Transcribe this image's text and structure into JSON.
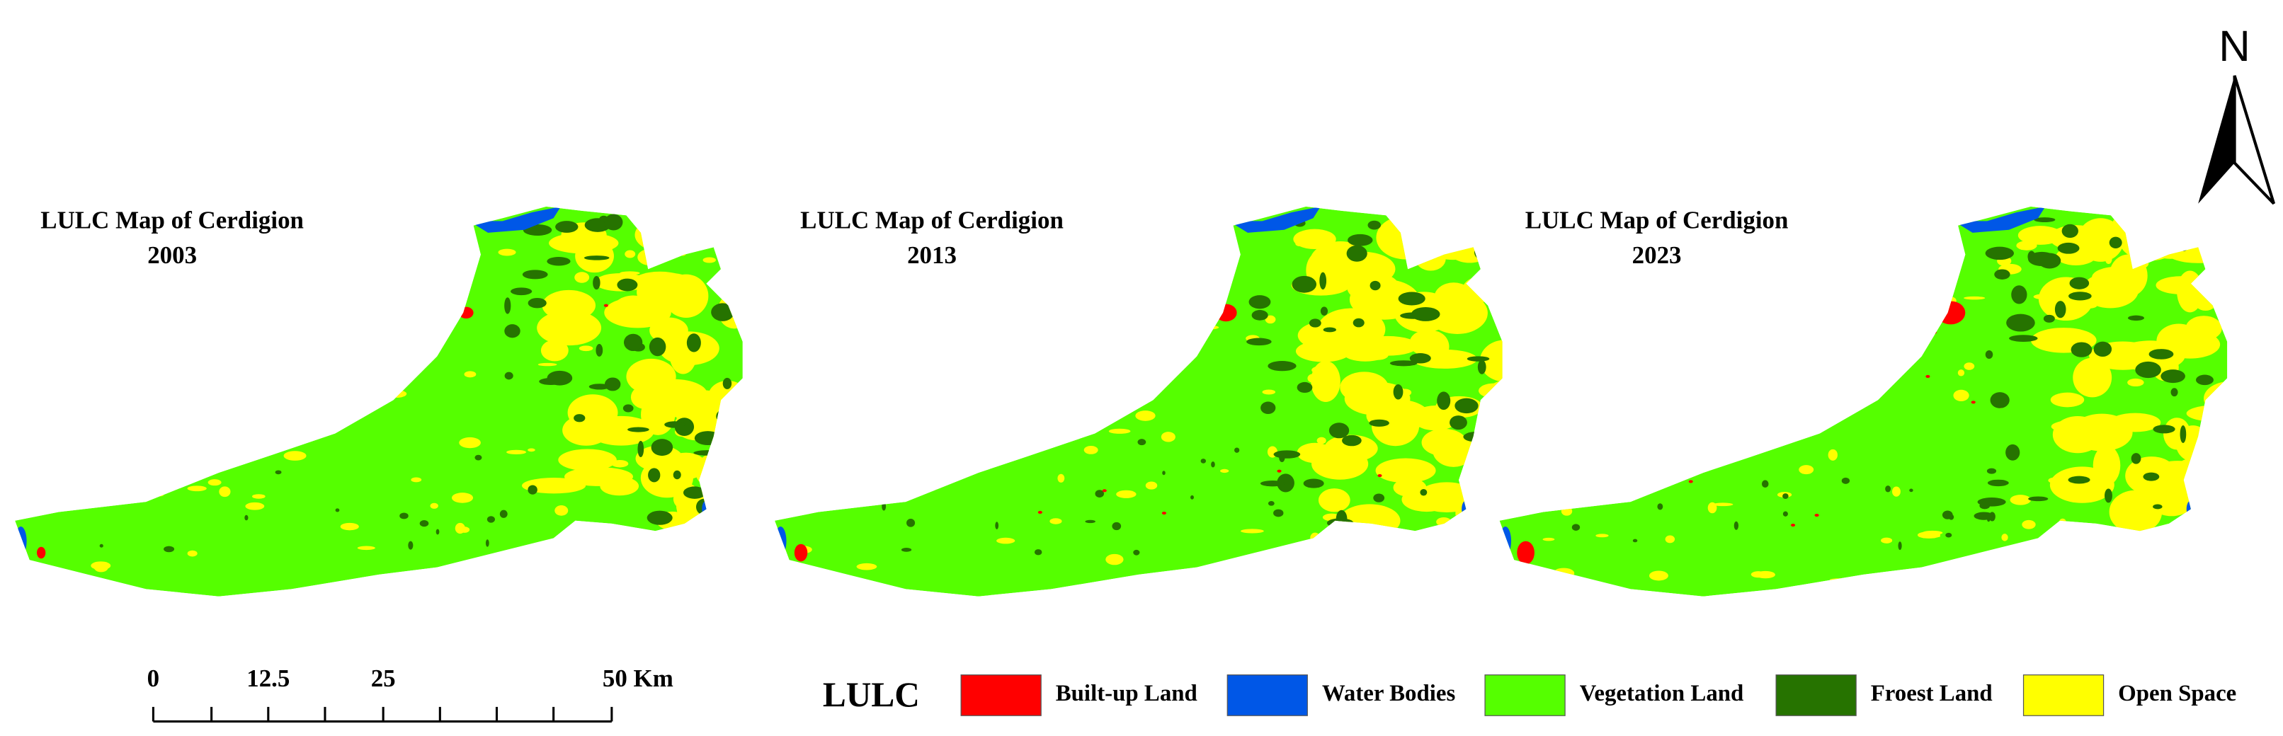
{
  "maps": [
    {
      "title": "LULC Map of Cerdigion",
      "year": "2003"
    },
    {
      "title": "LULC Map of Cerdigion",
      "year": "2013"
    },
    {
      "title": "LULC Map of Cerdigion",
      "year": "2023"
    }
  ],
  "north_arrow": {
    "label": "N"
  },
  "scale_bar": {
    "labels": [
      "0",
      "12.5",
      "25",
      "50 Km"
    ]
  },
  "legend": {
    "title": "LULC",
    "items": [
      {
        "label": "Built-up Land",
        "color": "#ff0000"
      },
      {
        "label": "Water Bodies",
        "color": "#0057e7"
      },
      {
        "label": "Vegetation Land",
        "color": "#55ff00"
      },
      {
        "label": "Froest Land",
        "color": "#267300"
      },
      {
        "label": "Open Space",
        "color": "#ffff00"
      }
    ]
  }
}
